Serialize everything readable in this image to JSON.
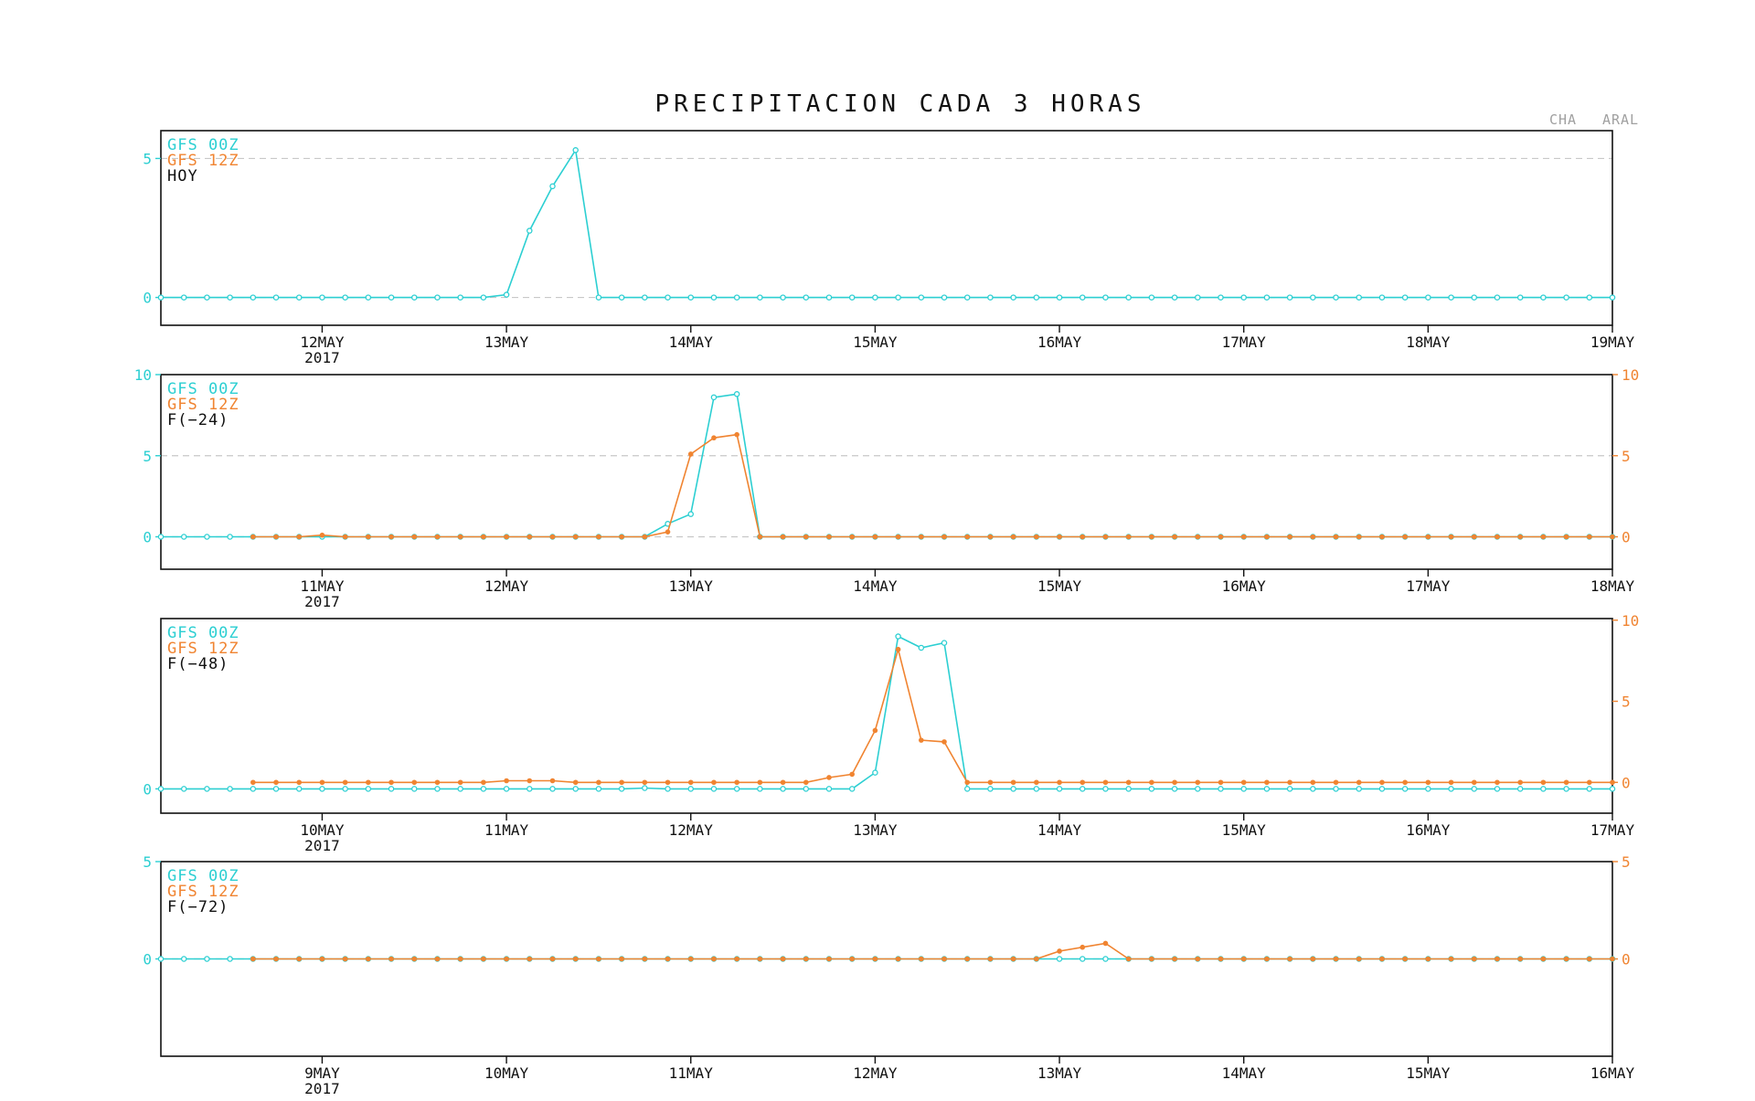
{
  "title": "PRECIPITACION CADA 3 HORAS",
  "tags": [
    "CHA",
    "ARAL"
  ],
  "colors": {
    "gfs00": "#2ccfd2",
    "gfs12": "#f08431",
    "frame": "#111111",
    "refline": "#c8c8c8"
  },
  "chart_data": [
    {
      "type": "line",
      "legend": [
        "GFS 00Z",
        "GFS 12Z",
        "HOY"
      ],
      "start_hour": 3,
      "x_ticks": [
        {
          "label": "12MAY",
          "year": "2017",
          "hour": 24
        },
        {
          "label": "13MAY",
          "hour": 48
        },
        {
          "label": "14MAY",
          "hour": 72
        },
        {
          "label": "15MAY",
          "hour": 96
        },
        {
          "label": "16MAY",
          "hour": 120
        },
        {
          "label": "17MAY",
          "hour": 144
        },
        {
          "label": "18MAY",
          "hour": 168
        },
        {
          "label": "19MAY",
          "hour": 192
        }
      ],
      "xlim": [
        3,
        192
      ],
      "ylim": [
        -1,
        6
      ],
      "left_ticks": [
        0,
        5
      ],
      "right_ticks": [],
      "reference_lines": [
        5,
        0
      ],
      "series": [
        {
          "name": "GFS 00Z",
          "color": "#2ccfd2",
          "start_hour": 3,
          "values": [
            0,
            0,
            0,
            0,
            0,
            0,
            0,
            0,
            0,
            0,
            0,
            0,
            0,
            0,
            0,
            0.1,
            2.4,
            4.0,
            5.3,
            0,
            0,
            0,
            0,
            0,
            0,
            0,
            0,
            0,
            0,
            0,
            0,
            0,
            0,
            0,
            0,
            0,
            0,
            0,
            0,
            0,
            0,
            0,
            0,
            0,
            0,
            0,
            0,
            0,
            0,
            0,
            0,
            0,
            0,
            0,
            0,
            0,
            0,
            0,
            0,
            0,
            0,
            0,
            0,
            0
          ]
        },
        {
          "name": "GFS 12Z",
          "color": "#f08431",
          "start_hour": 15,
          "values": []
        }
      ]
    },
    {
      "type": "line",
      "legend": [
        "GFS 00Z",
        "GFS 12Z",
        "F(−24)"
      ],
      "x_ticks": [
        {
          "label": "11MAY",
          "year": "2017",
          "hour": 24
        },
        {
          "label": "12MAY",
          "hour": 48
        },
        {
          "label": "13MAY",
          "hour": 72
        },
        {
          "label": "14MAY",
          "hour": 96
        },
        {
          "label": "15MAY",
          "hour": 120
        },
        {
          "label": "16MAY",
          "hour": 144
        },
        {
          "label": "17MAY",
          "hour": 168
        },
        {
          "label": "18MAY",
          "hour": 192
        }
      ],
      "xlim": [
        3,
        192
      ],
      "ylim": [
        -2,
        10
      ],
      "left_ticks": [
        0,
        5,
        10
      ],
      "right_ticks": [
        0,
        5,
        10
      ],
      "reference_lines": [
        5,
        0
      ],
      "series": [
        {
          "name": "GFS 00Z",
          "color": "#2ccfd2",
          "start_hour": 3,
          "values": [
            0,
            0,
            0,
            0,
            0,
            0,
            0,
            0,
            0,
            0,
            0,
            0,
            0,
            0,
            0,
            0,
            0,
            0,
            0,
            0,
            0,
            0,
            0.8,
            1.4,
            8.6,
            8.8,
            0,
            0,
            0,
            0,
            0,
            0,
            0,
            0,
            0,
            0,
            0,
            0,
            0,
            0,
            0,
            0,
            0,
            0,
            0,
            0,
            0,
            0,
            0,
            0,
            0,
            0,
            0,
            0,
            0,
            0,
            0,
            0,
            0,
            0,
            0,
            0,
            0,
            0
          ]
        },
        {
          "name": "GFS 12Z",
          "color": "#f08431",
          "start_hour": 15,
          "values": [
            0,
            0,
            0,
            0.1,
            0,
            0,
            0,
            0,
            0,
            0,
            0,
            0,
            0,
            0,
            0,
            0,
            0,
            0,
            0.3,
            5.1,
            6.1,
            6.3,
            0,
            0,
            0,
            0,
            0,
            0,
            0,
            0,
            0,
            0,
            0,
            0,
            0,
            0,
            0,
            0,
            0,
            0,
            0,
            0,
            0,
            0,
            0,
            0,
            0,
            0,
            0,
            0,
            0,
            0,
            0,
            0,
            0,
            0,
            0,
            0,
            0,
            0
          ]
        }
      ]
    },
    {
      "type": "line",
      "legend": [
        "GFS 00Z",
        "GFS 12Z",
        "F(−48)"
      ],
      "x_ticks": [
        {
          "label": "10MAY",
          "year": "2017",
          "hour": 24
        },
        {
          "label": "11MAY",
          "hour": 48
        },
        {
          "label": "12MAY",
          "hour": 72
        },
        {
          "label": "13MAY",
          "hour": 96
        },
        {
          "label": "14MAY",
          "hour": 120
        },
        {
          "label": "15MAY",
          "hour": 144
        },
        {
          "label": "16MAY",
          "hour": 168
        },
        {
          "label": "17MAY",
          "hour": 192
        }
      ],
      "xlim": [
        3,
        192
      ],
      "ylim": [
        -1.5,
        10.5
      ],
      "left_ticks": [
        0
      ],
      "right_ticks": [
        0,
        5,
        10
      ],
      "right_offset": 0.4,
      "reference_lines": [],
      "series": [
        {
          "name": "GFS 00Z",
          "color": "#2ccfd2",
          "start_hour": 3,
          "values": [
            0,
            0,
            0,
            0,
            0,
            0,
            0,
            0,
            0,
            0,
            0,
            0,
            0,
            0,
            0,
            0,
            0,
            0,
            0,
            0,
            0,
            0.05,
            0,
            0,
            0,
            0,
            0,
            0,
            0,
            0,
            0,
            1.0,
            9.4,
            8.7,
            9.0,
            0,
            0,
            0,
            0,
            0,
            0,
            0,
            0,
            0,
            0,
            0,
            0,
            0,
            0,
            0,
            0,
            0,
            0,
            0,
            0,
            0,
            0,
            0,
            0,
            0,
            0,
            0,
            0,
            0
          ]
        },
        {
          "name": "GFS 12Z",
          "color": "#f08431",
          "start_hour": 15,
          "values": [
            0,
            0,
            0,
            0,
            0,
            0,
            0,
            0,
            0,
            0,
            0,
            0.1,
            0.1,
            0.1,
            0,
            0,
            0,
            0,
            0,
            0,
            0,
            0,
            0,
            0,
            0,
            0.3,
            0.5,
            3.2,
            8.2,
            2.6,
            2.5,
            0,
            0,
            0,
            0,
            0,
            0,
            0,
            0,
            0,
            0,
            0,
            0,
            0,
            0,
            0,
            0,
            0,
            0,
            0,
            0,
            0,
            0,
            0,
            0,
            0,
            0,
            0,
            0,
            0
          ]
        }
      ]
    },
    {
      "type": "line",
      "legend": [
        "GFS 00Z",
        "GFS 12Z",
        "F(−72)"
      ],
      "x_ticks": [
        {
          "label": "9MAY",
          "year": "2017",
          "hour": 24
        },
        {
          "label": "10MAY",
          "hour": 48
        },
        {
          "label": "11MAY",
          "hour": 72
        },
        {
          "label": "12MAY",
          "hour": 96
        },
        {
          "label": "13MAY",
          "hour": 120
        },
        {
          "label": "14MAY",
          "hour": 144
        },
        {
          "label": "15MAY",
          "hour": 168
        },
        {
          "label": "16MAY",
          "hour": 192
        }
      ],
      "xlim": [
        3,
        192
      ],
      "ylim": [
        -5,
        5
      ],
      "left_ticks": [
        0,
        5
      ],
      "right_ticks": [
        0,
        5
      ],
      "reference_lines": [
        0
      ],
      "series": [
        {
          "name": "GFS 00Z",
          "color": "#2ccfd2",
          "start_hour": 3,
          "values": [
            0,
            0,
            0,
            0,
            0,
            0,
            0,
            0,
            0,
            0,
            0,
            0,
            0,
            0,
            0,
            0,
            0,
            0,
            0,
            0,
            0,
            0,
            0,
            0,
            0,
            0,
            0,
            0,
            0,
            0,
            0,
            0,
            0,
            0,
            0,
            0,
            0,
            0,
            0,
            0,
            0,
            0,
            0,
            0,
            0,
            0,
            0,
            0,
            0,
            0,
            0,
            0,
            0,
            0,
            0,
            0,
            0,
            0,
            0,
            0,
            0,
            0,
            0,
            0
          ]
        },
        {
          "name": "GFS 12Z",
          "color": "#f08431",
          "start_hour": 15,
          "values": [
            0,
            0,
            0,
            0,
            0,
            0,
            0,
            0,
            0,
            0,
            0,
            0,
            0,
            0,
            0,
            0,
            0,
            0,
            0,
            0,
            0,
            0,
            0,
            0,
            0,
            0,
            0,
            0,
            0,
            0,
            0,
            0,
            0,
            0,
            0,
            0.4,
            0.6,
            0.8,
            0,
            0,
            0,
            0,
            0,
            0,
            0,
            0,
            0,
            0,
            0,
            0,
            0,
            0,
            0,
            0,
            0,
            0,
            0,
            0,
            0,
            0
          ]
        }
      ]
    }
  ]
}
